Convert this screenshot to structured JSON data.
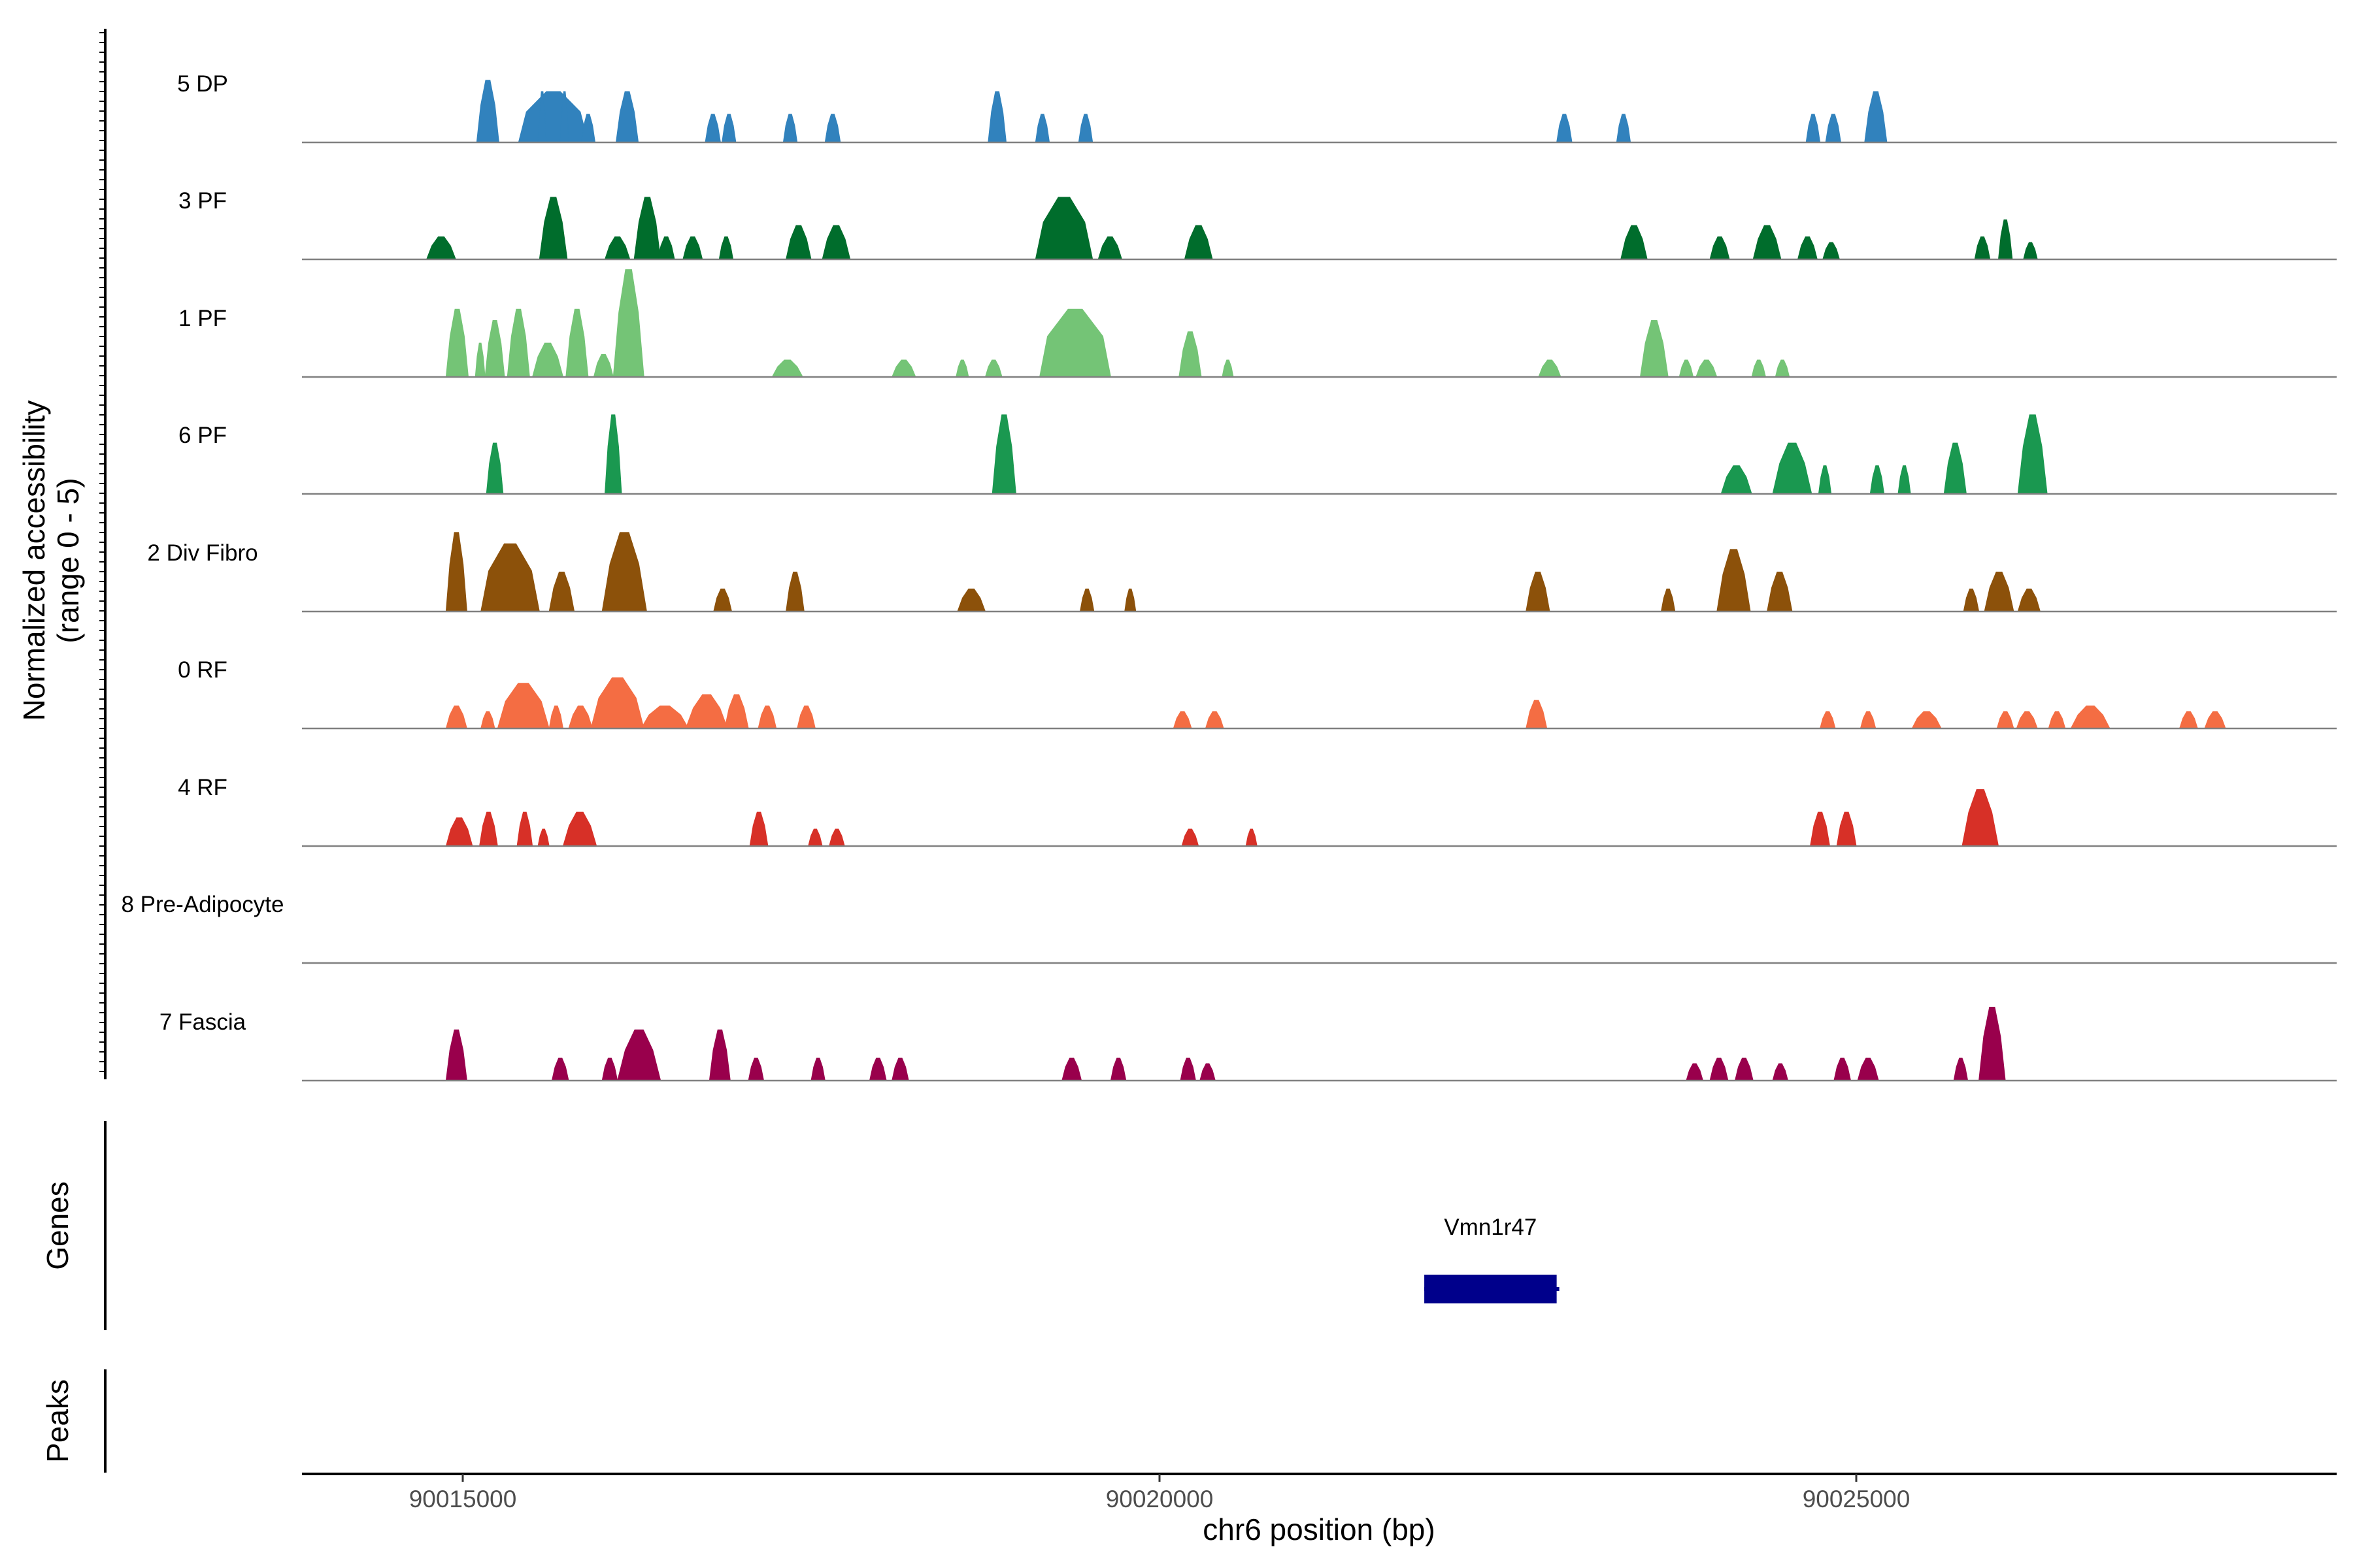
{
  "chart_data": {
    "type": "area",
    "region": {
      "chrom": "chr6",
      "start": 90013990,
      "end": 90028200
    },
    "xlabel": "chr6 position (bp)",
    "ylabel_lines": [
      "Normalized accessibility",
      "(range 0 - 5)"
    ],
    "x_ticks": [
      {
        "value": 90015000,
        "label": "90015000"
      },
      {
        "value": 90020000,
        "label": "90020000"
      },
      {
        "value": 90025000,
        "label": "90025000"
      }
    ],
    "baseline_color": "#808080",
    "tracks": [
      {
        "name": "5 DP",
        "color": "#3182bd",
        "peaks": [
          [
            90015100,
            90015260,
            0.55
          ],
          [
            90015400,
            90015900,
            0.45
          ],
          [
            90015540,
            90015600,
            0.45
          ],
          [
            90015700,
            90015760,
            0.45
          ],
          [
            90015850,
            90015950,
            0.25
          ],
          [
            90016100,
            90016260,
            0.45
          ],
          [
            90016740,
            90016850,
            0.25
          ],
          [
            90016860,
            90016960,
            0.25
          ],
          [
            90017300,
            90017400,
            0.25
          ],
          [
            90017600,
            90017710,
            0.25
          ],
          [
            90018770,
            90018900,
            0.45
          ],
          [
            90019110,
            90019210,
            0.25
          ],
          [
            90019420,
            90019520,
            0.25
          ],
          [
            90022850,
            90022960,
            0.25
          ],
          [
            90023280,
            90023380,
            0.25
          ],
          [
            90024640,
            90024740,
            0.25
          ],
          [
            90024780,
            90024890,
            0.25
          ],
          [
            90025060,
            90025220,
            0.45
          ]
        ]
      },
      {
        "name": "3 PF",
        "color": "#006d2c",
        "peaks": [
          [
            90014740,
            90014950,
            0.2
          ],
          [
            90015550,
            90015750,
            0.55
          ],
          [
            90016020,
            90016200,
            0.2
          ],
          [
            90016230,
            90016420,
            0.55
          ],
          [
            90016400,
            90016520,
            0.2
          ],
          [
            90016580,
            90016720,
            0.2
          ],
          [
            90016840,
            90016940,
            0.2
          ],
          [
            90017320,
            90017500,
            0.3
          ],
          [
            90017580,
            90017780,
            0.3
          ],
          [
            90019110,
            90019520,
            0.55
          ],
          [
            90019560,
            90019730,
            0.2
          ],
          [
            90020180,
            90020380,
            0.3
          ],
          [
            90023310,
            90023500,
            0.3
          ],
          [
            90023950,
            90024090,
            0.2
          ],
          [
            90024260,
            90024460,
            0.3
          ],
          [
            90024580,
            90024720,
            0.2
          ],
          [
            90024760,
            90024880,
            0.15
          ],
          [
            90025850,
            90025960,
            0.2
          ],
          [
            90026020,
            90026120,
            0.35
          ],
          [
            90026200,
            90026300,
            0.15
          ]
        ]
      },
      {
        "name": "1 PF",
        "color": "#74c476",
        "peaks": [
          [
            90014880,
            90015040,
            0.6
          ],
          [
            90015090,
            90015160,
            0.3
          ],
          [
            90015160,
            90015300,
            0.5
          ],
          [
            90015320,
            90015480,
            0.6
          ],
          [
            90015500,
            90015720,
            0.3
          ],
          [
            90015740,
            90015900,
            0.6
          ],
          [
            90015940,
            90016080,
            0.2
          ],
          [
            90016080,
            90016300,
            0.95
          ],
          [
            90017220,
            90017440,
            0.15
          ],
          [
            90018080,
            90018250,
            0.15
          ],
          [
            90018540,
            90018630,
            0.15
          ],
          [
            90018750,
            90018870,
            0.15
          ],
          [
            90019140,
            90019650,
            0.6
          ],
          [
            90020140,
            90020300,
            0.4
          ],
          [
            90020450,
            90020530,
            0.15
          ],
          [
            90022720,
            90022880,
            0.15
          ],
          [
            90023450,
            90023650,
            0.5
          ],
          [
            90023730,
            90023830,
            0.15
          ],
          [
            90023850,
            90024000,
            0.15
          ],
          [
            90024250,
            90024350,
            0.15
          ],
          [
            90024420,
            90024520,
            0.15
          ]
        ]
      },
      {
        "name": "6 PF",
        "color": "#1a9850",
        "peaks": [
          [
            90015170,
            90015290,
            0.45
          ],
          [
            90016020,
            90016140,
            0.7
          ],
          [
            90018800,
            90018970,
            0.7
          ],
          [
            90024030,
            90024250,
            0.25
          ],
          [
            90024400,
            90024680,
            0.45
          ],
          [
            90024730,
            90024820,
            0.25
          ],
          [
            90025100,
            90025200,
            0.25
          ],
          [
            90025300,
            90025390,
            0.25
          ],
          [
            90025630,
            90025790,
            0.45
          ],
          [
            90026160,
            90026370,
            0.7
          ]
        ]
      },
      {
        "name": "2 Div Fibro",
        "color": "#8c510a",
        "peaks": [
          [
            90014880,
            90015030,
            0.7
          ],
          [
            90015130,
            90015550,
            0.6
          ],
          [
            90015620,
            90015800,
            0.35
          ],
          [
            90016000,
            90016320,
            0.7
          ],
          [
            90016800,
            90016930,
            0.2
          ],
          [
            90017320,
            90017450,
            0.35
          ],
          [
            90018550,
            90018750,
            0.2
          ],
          [
            90019430,
            90019530,
            0.2
          ],
          [
            90019750,
            90019830,
            0.2
          ],
          [
            90022630,
            90022800,
            0.35
          ],
          [
            90023600,
            90023700,
            0.2
          ],
          [
            90024000,
            90024240,
            0.55
          ],
          [
            90024360,
            90024540,
            0.35
          ],
          [
            90025770,
            90025880,
            0.2
          ],
          [
            90025920,
            90026130,
            0.35
          ],
          [
            90026160,
            90026320,
            0.2
          ]
        ]
      },
      {
        "name": "0 RF",
        "color": "#f46d43",
        "peaks": [
          [
            90014880,
            90015030,
            0.2
          ],
          [
            90015130,
            90015230,
            0.15
          ],
          [
            90015250,
            90015620,
            0.4
          ],
          [
            90015620,
            90015720,
            0.2
          ],
          [
            90015760,
            90015930,
            0.2
          ],
          [
            90015920,
            90016300,
            0.45
          ],
          [
            90016280,
            90016620,
            0.2
          ],
          [
            90016600,
            90016900,
            0.3
          ],
          [
            90016880,
            90017050,
            0.3
          ],
          [
            90017120,
            90017250,
            0.2
          ],
          [
            90017400,
            90017530,
            0.2
          ],
          [
            90020100,
            90020230,
            0.15
          ],
          [
            90020330,
            90020460,
            0.15
          ],
          [
            90022630,
            90022780,
            0.25
          ],
          [
            90024740,
            90024850,
            0.15
          ],
          [
            90025030,
            90025140,
            0.15
          ],
          [
            90025400,
            90025610,
            0.15
          ],
          [
            90026010,
            90026130,
            0.15
          ],
          [
            90026150,
            90026300,
            0.15
          ],
          [
            90026380,
            90026500,
            0.15
          ],
          [
            90026540,
            90026820,
            0.2
          ],
          [
            90027320,
            90027450,
            0.15
          ],
          [
            90027500,
            90027650,
            0.15
          ]
        ]
      },
      {
        "name": "4 RF",
        "color": "#d73027",
        "peaks": [
          [
            90014880,
            90015070,
            0.25
          ],
          [
            90015120,
            90015250,
            0.3
          ],
          [
            90015390,
            90015500,
            0.3
          ],
          [
            90015540,
            90015620,
            0.15
          ],
          [
            90015720,
            90015960,
            0.3
          ],
          [
            90017060,
            90017190,
            0.3
          ],
          [
            90017480,
            90017580,
            0.15
          ],
          [
            90017630,
            90017740,
            0.15
          ],
          [
            90020160,
            90020280,
            0.15
          ],
          [
            90020620,
            90020700,
            0.15
          ],
          [
            90024670,
            90024810,
            0.3
          ],
          [
            90024860,
            90025000,
            0.3
          ],
          [
            90025760,
            90026020,
            0.5
          ]
        ]
      },
      {
        "name": "8 Pre-Adipocyte",
        "color": "#737373",
        "peaks": []
      },
      {
        "name": "7 Fascia",
        "color": "#99004c",
        "peaks": [
          [
            90014880,
            90015030,
            0.45
          ],
          [
            90015640,
            90015760,
            0.2
          ],
          [
            90016000,
            90016110,
            0.2
          ],
          [
            90016110,
            90016420,
            0.45
          ],
          [
            90016770,
            90016920,
            0.45
          ],
          [
            90017050,
            90017160,
            0.2
          ],
          [
            90017500,
            90017600,
            0.2
          ],
          [
            90017920,
            90018040,
            0.2
          ],
          [
            90018080,
            90018200,
            0.2
          ],
          [
            90019300,
            90019440,
            0.2
          ],
          [
            90019650,
            90019760,
            0.2
          ],
          [
            90020150,
            90020260,
            0.2
          ],
          [
            90020290,
            90020400,
            0.15
          ],
          [
            90023780,
            90023900,
            0.15
          ],
          [
            90023950,
            90024080,
            0.2
          ],
          [
            90024130,
            90024260,
            0.2
          ],
          [
            90024400,
            90024510,
            0.15
          ],
          [
            90024840,
            90024960,
            0.2
          ],
          [
            90025010,
            90025160,
            0.2
          ],
          [
            90025700,
            90025800,
            0.2
          ],
          [
            90025880,
            90026070,
            0.65
          ]
        ]
      }
    ],
    "gene_track": {
      "label": "Genes",
      "genes": [
        {
          "name": "Vmn1r47",
          "start": 90021900,
          "end": 90022850,
          "strand": "+",
          "color": "#00008b"
        }
      ]
    },
    "peaks_track": {
      "label": "Peaks",
      "peaks": []
    }
  }
}
